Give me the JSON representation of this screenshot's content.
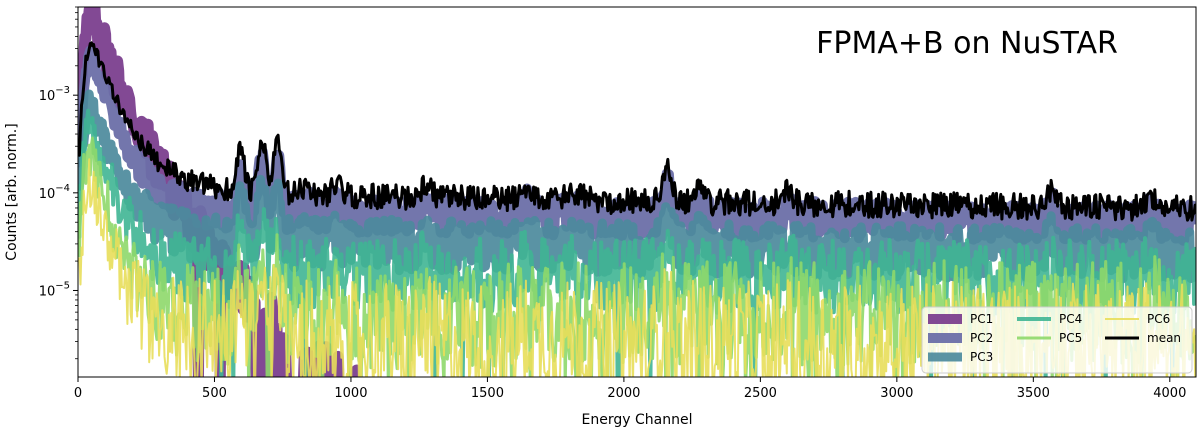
{
  "chart_data": {
    "type": "line",
    "title": "FPMA+B on NuSTAR",
    "xlabel": "Energy Channel",
    "ylabel": "Counts [arb. norm.]",
    "yscale": "log",
    "xlim": [
      0,
      4096
    ],
    "ylim": [
      1.3e-06,
      0.008
    ],
    "xticks": [
      0,
      500,
      1000,
      1500,
      2000,
      2500,
      3000,
      3500,
      4000
    ],
    "xtick_labels": [
      "0",
      "500",
      "1000",
      "1500",
      "2000",
      "2500",
      "3000",
      "3500",
      "4000"
    ],
    "yticks": [
      1e-05,
      0.0001,
      0.001
    ],
    "ytick_labels": [
      {
        "base": "10",
        "exp": "−5"
      },
      {
        "base": "10",
        "exp": "−4"
      },
      {
        "base": "10",
        "exp": "−3"
      }
    ],
    "legend_position": "lower-right",
    "peaks": [
      {
        "x": 595,
        "amp": 1.9,
        "w": 12
      },
      {
        "x": 675,
        "amp": 2.4,
        "w": 12
      },
      {
        "x": 730,
        "amp": 2.4,
        "w": 12
      },
      {
        "x": 835,
        "amp": 0.25,
        "w": 14
      },
      {
        "x": 945,
        "amp": 0.35,
        "w": 16
      },
      {
        "x": 1275,
        "amp": 0.35,
        "w": 18
      },
      {
        "x": 1640,
        "amp": 0.35,
        "w": 18
      },
      {
        "x": 1820,
        "amp": 0.15,
        "w": 30
      },
      {
        "x": 2160,
        "amp": 1.3,
        "w": 14
      },
      {
        "x": 2280,
        "amp": 0.55,
        "w": 14
      },
      {
        "x": 2600,
        "amp": 0.4,
        "w": 15
      },
      {
        "x": 3570,
        "amp": 0.5,
        "w": 18
      },
      {
        "x": 3930,
        "amp": 0.3,
        "w": 18
      }
    ],
    "series": [
      {
        "name": "PC1",
        "color": "#7b3f8e",
        "width": 11,
        "opacity": 0.95,
        "peak_val": 0.0075,
        "peak_x": 50,
        "decay": 52,
        "floor": 0,
        "floor_slope": 0,
        "noise": 0.25,
        "peak_scale": 0.7,
        "dropouts": 0.15
      },
      {
        "name": "PC2",
        "color": "#6b6fa8",
        "width": 10,
        "opacity": 0.95,
        "peak_val": 0.0028,
        "peak_x": 45,
        "decay": 48,
        "floor": 6.5e-05,
        "floor_slope": -0.2,
        "noise": 0.1,
        "peak_scale": 1.0,
        "dropouts": 0
      },
      {
        "name": "PC3",
        "color": "#4c8a9c",
        "width": 9,
        "opacity": 0.92,
        "peak_val": 0.0009,
        "peak_x": 40,
        "decay": 50,
        "floor": 3.3e-05,
        "floor_slope": -0.25,
        "noise": 0.14,
        "peak_scale": 1.0,
        "dropouts": 0
      },
      {
        "name": "PC4",
        "color": "#3fb594",
        "width": 4,
        "opacity": 0.9,
        "peak_val": 0.00058,
        "peak_x": 38,
        "decay": 46,
        "floor": 1.55e-05,
        "floor_slope": -0.1,
        "noise": 0.2,
        "peak_scale": 1.0,
        "dropouts": 0.02
      },
      {
        "name": "PC5",
        "color": "#8ed86a",
        "width": 3,
        "opacity": 0.9,
        "peak_val": 0.00028,
        "peak_x": 38,
        "decay": 44,
        "floor": 5e-06,
        "floor_slope": 0.15,
        "noise": 0.28,
        "peak_scale": 1.0,
        "dropouts": 0.05
      },
      {
        "name": "PC6",
        "color": "#e8de5a",
        "width": 2,
        "opacity": 0.9,
        "peak_val": 0.000135,
        "peak_x": 38,
        "decay": 44,
        "floor": 3.2e-06,
        "floor_slope": -0.05,
        "noise": 0.32,
        "peak_scale": 1.0,
        "dropouts": 0.08
      },
      {
        "name": "mean",
        "color": "#000000",
        "width": 3,
        "opacity": 1,
        "peak_val": 0.0038,
        "peak_x": 45,
        "decay": 55,
        "floor": 0.000105,
        "floor_slope": -0.3,
        "noise": 0.07,
        "peak_scale": 1.0,
        "dropouts": 0
      }
    ]
  }
}
